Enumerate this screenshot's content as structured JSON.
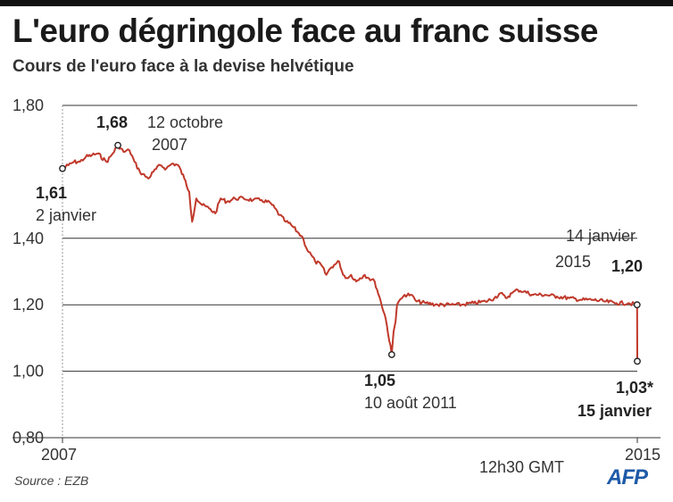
{
  "header": {
    "title": "L'euro dégringole face au franc suisse",
    "subtitle": "Cours de l'euro face à la devise helvétique"
  },
  "footer": {
    "source": "Source : EZB",
    "logo": "AFP"
  },
  "colors": {
    "line": "#c0392b",
    "grid": "#333333",
    "topbar": "#111111",
    "logo": "#1e5aa8"
  },
  "chart_data": {
    "type": "line",
    "title": "L'euro dégringole face au franc suisse",
    "subtitle": "Cours de l'euro face à la devise helvétique",
    "xlabel": "",
    "ylabel": "",
    "ylim": [
      0.8,
      1.8
    ],
    "xlim": [
      "2007-01-02",
      "2015-01-15"
    ],
    "yticks": [
      "1,80",
      "1,40",
      "1,20",
      "1,00",
      "0,80"
    ],
    "xticks": [
      "2007",
      "2015"
    ],
    "grid": true,
    "series": [
      {
        "x": [
          "2007-01-02",
          "2007-02-01",
          "2007-03-01",
          "2007-04-01",
          "2007-05-01",
          "2007-06-01",
          "2007-07-01",
          "2007-08-15",
          "2007-09-15",
          "2007-10-12",
          "2007-11-10",
          "2007-12-10",
          "2008-01-05",
          "2008-02-01",
          "2008-03-15",
          "2008-04-10",
          "2008-05-15",
          "2008-06-15",
          "2008-07-15",
          "2008-08-15",
          "2008-09-15",
          "2008-10-10",
          "2008-10-25",
          "2008-11-15",
          "2008-12-15",
          "2009-01-20",
          "2009-02-20",
          "2009-03-20",
          "2009-04-20",
          "2009-06-01",
          "2009-07-15",
          "2009-09-01",
          "2009-10-15",
          "2009-12-01",
          "2010-01-15",
          "2010-02-15",
          "2010-03-15",
          "2010-04-15",
          "2010-05-15",
          "2010-06-01",
          "2010-06-25",
          "2010-07-15",
          "2010-08-15",
          "2010-09-10",
          "2010-10-01",
          "2010-10-20",
          "2010-11-15",
          "2010-12-05",
          "2010-12-30",
          "2011-01-15",
          "2011-02-10",
          "2011-03-01",
          "2011-03-25",
          "2011-04-15",
          "2011-05-15",
          "2011-06-15",
          "2011-07-10",
          "2011-08-10",
          "2011-08-20",
          "2011-08-30",
          "2011-09-06",
          "2011-09-15",
          "2011-10-01",
          "2011-10-15",
          "2011-11-15",
          "2011-12-15",
          "2012-02-01",
          "2012-04-01",
          "2012-06-01",
          "2012-08-01",
          "2012-10-01",
          "2012-12-01",
          "2013-01-15",
          "2013-02-15",
          "2013-03-15",
          "2013-04-15",
          "2013-05-15",
          "2013-06-15",
          "2013-08-01",
          "2013-10-01",
          "2013-12-01",
          "2014-02-01",
          "2014-04-01",
          "2014-06-01",
          "2014-08-01",
          "2014-10-01",
          "2014-12-01",
          "2015-01-14",
          "2015-01-15"
        ],
        "values": [
          1.61,
          1.62,
          1.63,
          1.63,
          1.645,
          1.65,
          1.655,
          1.63,
          1.655,
          1.68,
          1.66,
          1.665,
          1.63,
          1.6,
          1.58,
          1.6,
          1.62,
          1.61,
          1.625,
          1.62,
          1.58,
          1.54,
          1.45,
          1.52,
          1.5,
          1.49,
          1.475,
          1.52,
          1.51,
          1.52,
          1.52,
          1.515,
          1.515,
          1.505,
          1.47,
          1.45,
          1.44,
          1.42,
          1.4,
          1.37,
          1.35,
          1.33,
          1.32,
          1.29,
          1.31,
          1.32,
          1.33,
          1.29,
          1.28,
          1.29,
          1.27,
          1.28,
          1.29,
          1.28,
          1.27,
          1.21,
          1.16,
          1.05,
          1.12,
          1.15,
          1.2,
          1.21,
          1.22,
          1.23,
          1.23,
          1.21,
          1.205,
          1.2,
          1.2,
          1.2,
          1.205,
          1.21,
          1.22,
          1.235,
          1.22,
          1.235,
          1.245,
          1.24,
          1.23,
          1.23,
          1.225,
          1.22,
          1.215,
          1.215,
          1.21,
          1.205,
          1.205,
          1.2,
          1.03
        ]
      }
    ],
    "annotations": [
      {
        "x": "2007-01-02",
        "y": 1.61,
        "value": "1,61",
        "label": "2 janvier"
      },
      {
        "x": "2007-10-12",
        "y": 1.68,
        "value": "1,68",
        "label_line1": "12 octobre",
        "label_line2": "2007"
      },
      {
        "x": "2011-08-10",
        "y": 1.05,
        "value": "1,05",
        "label": "10 août 2011"
      },
      {
        "x": "2015-01-14",
        "y": 1.2,
        "value": "1,20",
        "label_line1": "14 janvier",
        "label_line2": "2015"
      },
      {
        "x": "2015-01-15",
        "y": 1.03,
        "value": "1,03*",
        "label": "15 janvier",
        "time": "12h30 GMT"
      }
    ]
  }
}
